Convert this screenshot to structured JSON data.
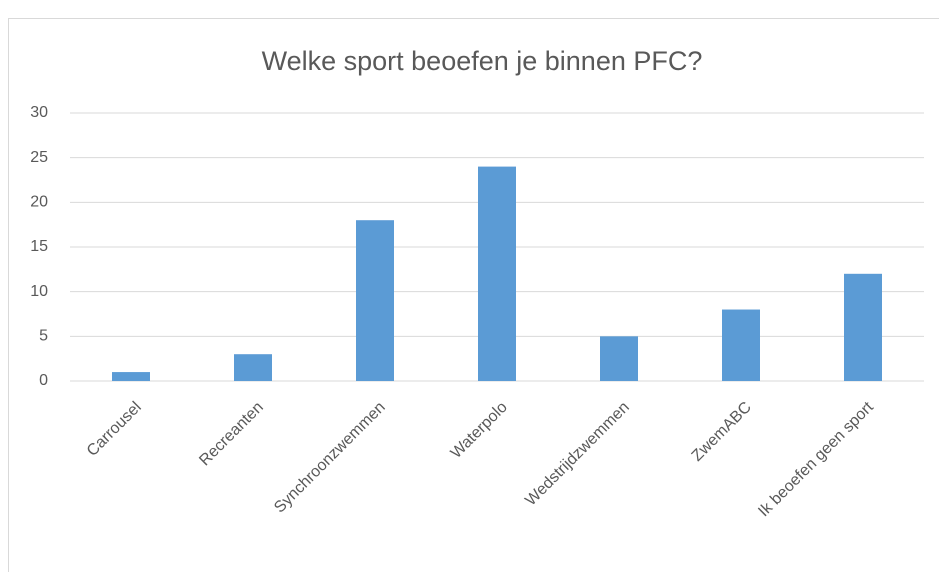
{
  "chart_data": {
    "type": "bar",
    "title": "Welke sport beoefen je binnen PFC?",
    "categories": [
      "Carrousel",
      "Recreanten",
      "Synchroonzwemmen",
      "Waterpolo",
      "Wedstrijdzwemmen",
      "ZwemABC",
      "Ik beoefen geen sport"
    ],
    "values": [
      1,
      3,
      18,
      24,
      5,
      8,
      12
    ],
    "color": "#5b9bd5",
    "ylim": [
      0,
      30
    ],
    "yticks": [
      0,
      5,
      10,
      15,
      20,
      25,
      30
    ],
    "grid": true
  }
}
